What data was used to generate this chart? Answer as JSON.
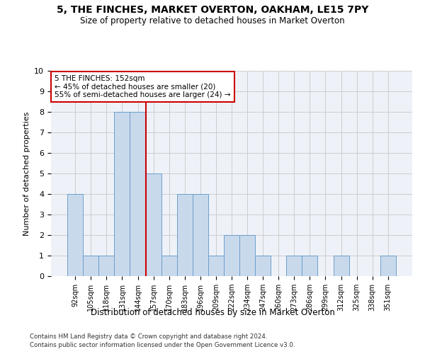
{
  "title": "5, THE FINCHES, MARKET OVERTON, OAKHAM, LE15 7PY",
  "subtitle": "Size of property relative to detached houses in Market Overton",
  "xlabel": "Distribution of detached houses by size in Market Overton",
  "ylabel": "Number of detached properties",
  "categories": [
    "92sqm",
    "105sqm",
    "118sqm",
    "131sqm",
    "144sqm",
    "157sqm",
    "170sqm",
    "183sqm",
    "196sqm",
    "209sqm",
    "222sqm",
    "234sqm",
    "247sqm",
    "260sqm",
    "273sqm",
    "286sqm",
    "299sqm",
    "312sqm",
    "325sqm",
    "338sqm",
    "351sqm"
  ],
  "values": [
    4,
    1,
    1,
    8,
    8,
    5,
    1,
    4,
    4,
    1,
    2,
    2,
    1,
    0,
    1,
    1,
    0,
    1,
    0,
    0,
    1
  ],
  "bar_color": "#c9d9ec",
  "bar_edgecolor": "#6a9fcb",
  "vline_x_index": 4,
  "marker_label_line1": "5 THE FINCHES: 152sqm",
  "marker_label_line2": "← 45% of detached houses are smaller (20)",
  "marker_label_line3": "55% of semi-detached houses are larger (24) →",
  "annotation_box_color": "#ffffff",
  "annotation_box_edgecolor": "#cc0000",
  "vline_color": "#cc0000",
  "ylim": [
    0,
    10
  ],
  "yticks": [
    0,
    1,
    2,
    3,
    4,
    5,
    6,
    7,
    8,
    9,
    10
  ],
  "grid_color": "#cccccc",
  "background_color": "#eef2f8",
  "footer1": "Contains HM Land Registry data © Crown copyright and database right 2024.",
  "footer2": "Contains public sector information licensed under the Open Government Licence v3.0."
}
